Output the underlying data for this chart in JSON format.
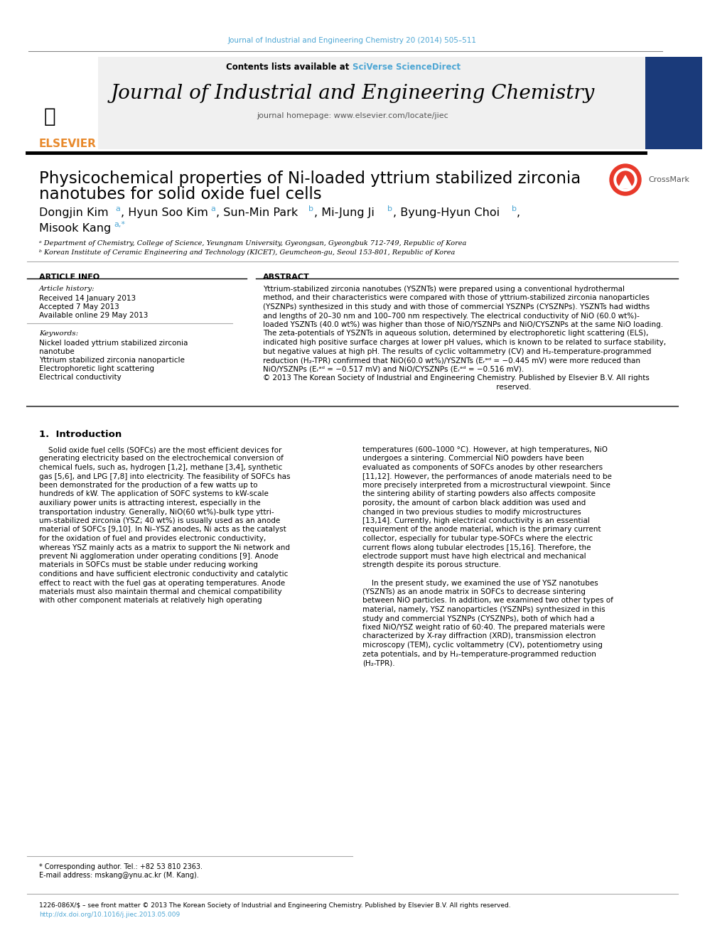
{
  "journal_citation": "Journal of Industrial and Engineering Chemistry 20 (2014) 505–511",
  "journal_name": "Journal of Industrial and Engineering Chemistry",
  "contents_line": "Contents lists available at SciVerse ScienceDirect",
  "homepage": "journal homepage: www.elsevier.com/locate/jiec",
  "paper_title": "Physicochemical properties of Ni-loaded yttrium stabilized zirconia\nnanotubes for solid oxide fuel cells",
  "authors": "Dongjin Kim a, Hyun Soo Kim a, Sun-Min Park b, Mi-Jung Ji b, Byung-Hyun Choi b,\nMisook Kang a,*",
  "affil_a": "ª Department of Chemistry, College of Science, Yeungnam University, Gyeongsan, Gyeongbuk 712-749, Republic of Korea",
  "affil_b": "ᵇ Korean Institute of Ceramic Engineering and Technology (KICET), Geumcheon-gu, Seoul 153-801, Republic of Korea",
  "article_info_header": "ARTICLE INFO",
  "article_history_label": "Article history:",
  "received": "Received 14 January 2013",
  "accepted": "Accepted 7 May 2013",
  "available": "Available online 29 May 2013",
  "keywords_label": "Keywords:",
  "keyword1": "Nickel loaded yttrium stabilized zirconia\nnanotube",
  "keyword2": "Yttrium stabilized zirconia nanoparticle",
  "keyword3": "Electrophoretic light scattering",
  "keyword4": "Electrical conductivity",
  "abstract_header": "ABSTRACT",
  "abstract_text": "Yttrium-stabilized zirconia nanotubes (YSZNTs) were prepared using a conventional hydrothermal method, and their characteristics were compared with those of yttrium-stabilized zirconia nanoparticles (YSZNPs) synthesized in this study and with those of commercial YSZNPs (CYSZNPs). YSZNTs had widths and lengths of 20–30 nm and 100–700 nm respectively. The electrical conductivity of NiO (60.0 wt%)-loaded YSZNTs (40.0 wt%) was higher than those of NiO/YSZNPs and NiO/CYSZNPs at the same NiO loading. The zeta-potentials of YSZNTs in aqueous solution, determined by electrophoretic light scattering (ELS), indicated high positive surface charges at lower pH values, which is known to be related to surface stability, but negative values at high pH. The results of cyclic voltammetry (CV) and H₂-temperature-programmed reduction (H₂-TPR) confirmed that NiO(60.0 wt%)/YSZNTs (Eᵣᵊᵈ = −0.445 mV) were more reduced than NiO/YSZNPs (Eᵣᵊᵈ = −0.517 mV) and NiO/CYSZNPs (Eᵣᵊᵈ = −0.516 mV).\n© 2013 The Korean Society of Industrial and Engineering Chemistry. Published by Elsevier B.V. All rights reserved.",
  "section1_header": "1.  Introduction",
  "intro_col1": "Solid oxide fuel cells (SOFCs) are the most efficient devices for generating electricity based on the electrochemical conversion of chemical fuels, such as, hydrogen [1,2], methane [3,4], synthetic gas [5,6], and LPG [7,8] into electricity. The feasibility of SOFCs has been demonstrated for the production of a few watts up to hundreds of kW. The application of SOFC systems to kW-scale auxiliary power units is attracting interest, especially in the transportation industry. Generally, NiO(60 wt%)-bulk type yttrium-stabilized zirconia (YSZ; 40 wt%) is usually used as an anode material of SOFCs [9,10]. In Ni–YSZ anodes, Ni acts as the catalyst for the oxidation of fuel and provides electronic conductivity, whereas YSZ mainly acts as a matrix to support the Ni network and prevent Ni agglomeration under operating conditions [9]. Anode materials in SOFCs must be stable under reducing working conditions and have sufficient electronic conductivity and catalytic effect to react with the fuel gas at operating temperatures. Anode materials must also maintain thermal and chemical compatibility with other component materials at relatively high operating",
  "intro_col2": "temperatures (600–1000 °C). However, at high temperatures, NiO undergoes a sintering. Commercial NiO powders have been evaluated as components of SOFCs anodes by other researchers [11,12]. However, the performances of anode materials need to be more precisely interpreted from a microstructural viewpoint. Since the sintering ability of starting powders also affects composite porosity, the amount of carbon black addition was used and changed in two previous studies to modify microstructures [13,14]. Currently, high electrical conductivity is an essential requirement of the anode material, which is the primary current collector, especially for tubular type-SOFCs where the electric current flows along tubular electrodes [15,16]. Therefore, the electrode support must have high electrical and mechanical strength despite its porous structure.\n\nIn the present study, we examined the use of YSZ nanotubes (YSZNTs) as an anode matrix in SOFCs to decrease sintering between NiO particles. In addition, we examined two other types of material, namely, YSZ nanoparticles (YSZNPs) synthesized in this study and commercial YSZNPs (CYSZNPs), both of which had a fixed NiO/YSZ weight ratio of 60:40. The prepared materials were characterized by X-ray diffraction (XRD), transmission electron microscopy (TEM), cyclic voltammetry (CV), potentiometry using zeta potentials, and by H₂-temperature-programmed reduction (H₂-TPR).",
  "footnote_corresp": "* Corresponding author. Tel.: +82 53 810 2363.",
  "footnote_email": "E-mail address: mskang@ynu.ac.kr (M. Kang).",
  "copyright_line": "1226-086X/$ – see front matter © 2013 The Korean Society of Industrial and Engineering Chemistry. Published by Elsevier B.V. All rights reserved.",
  "doi_line": "http://dx.doi.org/10.1016/j.jiec.2013.05.009",
  "bg_color": "#ffffff",
  "header_bg": "#f0f0f0",
  "blue_color": "#4da6d4",
  "dark_blue": "#1a5276",
  "orange_color": "#e8892b",
  "black": "#000000",
  "gray_line": "#999999",
  "dark_gray": "#333333",
  "light_blue_link": "#4da6d4"
}
